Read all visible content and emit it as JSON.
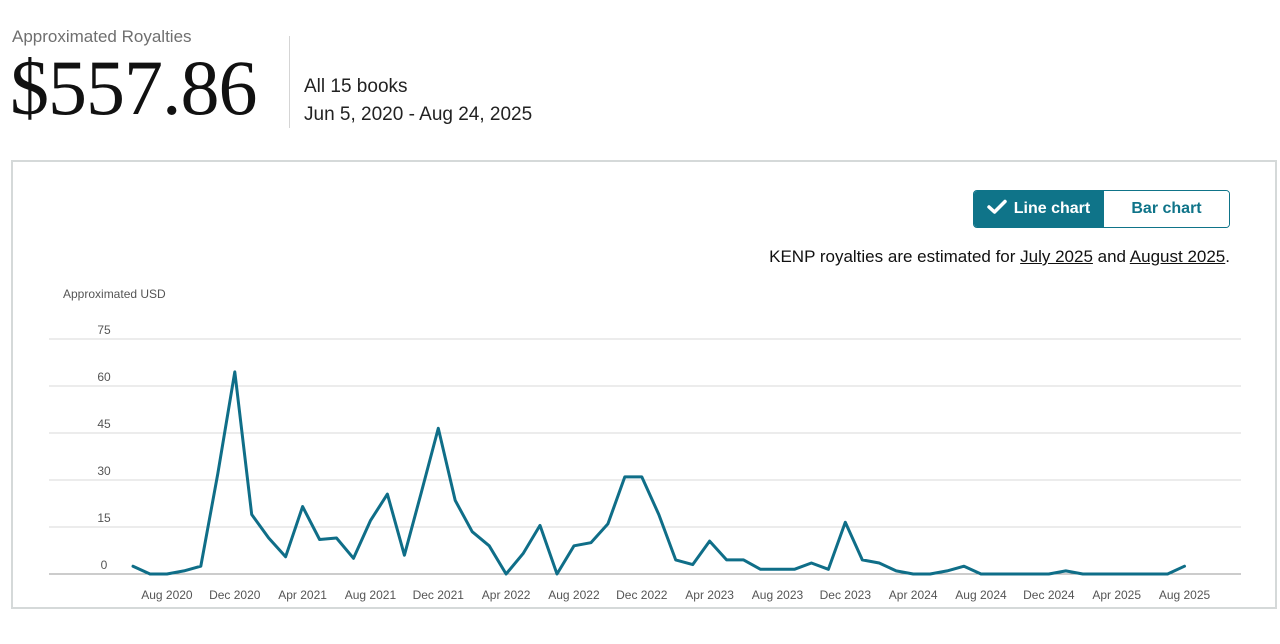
{
  "summary": {
    "label": "Approximated Royalties",
    "amount": "$557.86",
    "books": "All 15 books",
    "date_range": "Jun 5, 2020 - Aug 24, 2025"
  },
  "toggle": {
    "line_label": "Line chart",
    "bar_label": "Bar chart",
    "selected": "line"
  },
  "note": {
    "prefix": "KENP royalties are estimated for ",
    "link1": "July 2025",
    "middle": " and ",
    "link2": "August 2025",
    "suffix": "."
  },
  "colors": {
    "accent": "#0f7489",
    "line": "#0f6e88",
    "grid": "#d8d8d8"
  },
  "chart_data": {
    "type": "line",
    "ylabel": "Approximated USD",
    "ylim": [
      0,
      75
    ],
    "yticks": [
      0,
      15,
      30,
      45,
      60,
      75
    ],
    "xtick_labels": [
      "Aug 2020",
      "Dec 2020",
      "Apr 2021",
      "Aug 2021",
      "Dec 2021",
      "Apr 2022",
      "Aug 2022",
      "Dec 2022",
      "Apr 2023",
      "Aug 2023",
      "Dec 2023",
      "Apr 2024",
      "Aug 2024",
      "Dec 2024",
      "Apr 2025",
      "Aug 2025"
    ],
    "series": [
      {
        "name": "Royalties",
        "x": [
          "Jun 2020",
          "Jul 2020",
          "Aug 2020",
          "Sep 2020",
          "Oct 2020",
          "Nov 2020",
          "Dec 2020",
          "Jan 2021",
          "Feb 2021",
          "Mar 2021",
          "Apr 2021",
          "May 2021",
          "Jun 2021",
          "Jul 2021",
          "Aug 2021",
          "Sep 2021",
          "Oct 2021",
          "Nov 2021",
          "Dec 2021",
          "Jan 2022",
          "Feb 2022",
          "Mar 2022",
          "Apr 2022",
          "May 2022",
          "Jun 2022",
          "Jul 2022",
          "Aug 2022",
          "Sep 2022",
          "Oct 2022",
          "Nov 2022",
          "Dec 2022",
          "Jan 2023",
          "Feb 2023",
          "Mar 2023",
          "Apr 2023",
          "May 2023",
          "Jun 2023",
          "Jul 2023",
          "Aug 2023",
          "Sep 2023",
          "Oct 2023",
          "Nov 2023",
          "Dec 2023",
          "Jan 2024",
          "Feb 2024",
          "Mar 2024",
          "Apr 2024",
          "May 2024",
          "Jun 2024",
          "Jul 2024",
          "Aug 2024",
          "Sep 2024",
          "Oct 2024",
          "Nov 2024",
          "Dec 2024",
          "Jan 2025",
          "Feb 2025",
          "Mar 2025",
          "Apr 2025",
          "May 2025",
          "Jun 2025",
          "Jul 2025",
          "Aug 2025"
        ],
        "values": [
          2.5,
          0,
          0,
          1,
          2.5,
          32,
          64.5,
          19,
          11.5,
          5.5,
          21.5,
          11,
          11.5,
          5,
          17,
          25.5,
          6,
          26,
          46.5,
          23.5,
          13.5,
          9,
          0,
          6.5,
          15.5,
          0,
          9,
          10,
          16,
          31,
          31,
          19,
          4.5,
          3,
          10.5,
          4.5,
          4.5,
          1.5,
          1.5,
          1.5,
          3.5,
          1.5,
          16.5,
          4.5,
          3.5,
          1,
          0,
          0,
          1,
          2.5,
          0,
          0,
          0,
          0,
          0,
          1,
          0,
          0,
          0,
          0,
          0,
          0,
          2.5
        ]
      }
    ]
  }
}
